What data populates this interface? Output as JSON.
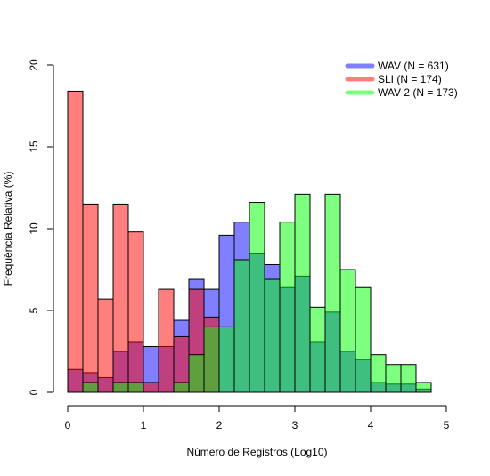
{
  "chart_data": {
    "type": "histogram",
    "title": "",
    "xlabel": "Número de Registros (Log10)",
    "ylabel": "Frequência Relativa (%)",
    "xlim": [
      0,
      5
    ],
    "ylim": [
      0,
      20
    ],
    "xticks": [
      0,
      1,
      2,
      3,
      4,
      5
    ],
    "yticks": [
      0,
      5,
      10,
      15,
      20
    ],
    "bin_width": 0.2,
    "legend_position": "top-right",
    "grid": false,
    "series": [
      {
        "name": "WAV (N = 631)",
        "color": "#0000ff",
        "alpha": 0.5,
        "bins": [
          {
            "x0": 0.0,
            "value": 1.4
          },
          {
            "x0": 0.2,
            "value": 1.2
          },
          {
            "x0": 0.4,
            "value": 0.9
          },
          {
            "x0": 0.6,
            "value": 2.5
          },
          {
            "x0": 0.8,
            "value": 3.1
          },
          {
            "x0": 1.0,
            "value": 2.8
          },
          {
            "x0": 1.2,
            "value": 2.8
          },
          {
            "x0": 1.4,
            "value": 4.4
          },
          {
            "x0": 1.6,
            "value": 6.9
          },
          {
            "x0": 1.8,
            "value": 6.3
          },
          {
            "x0": 2.0,
            "value": 9.6
          },
          {
            "x0": 2.2,
            "value": 10.4
          },
          {
            "x0": 2.4,
            "value": 8.5
          },
          {
            "x0": 2.6,
            "value": 7.8
          },
          {
            "x0": 2.8,
            "value": 6.4
          },
          {
            "x0": 3.0,
            "value": 7.1
          },
          {
            "x0": 3.2,
            "value": 3.1
          },
          {
            "x0": 3.4,
            "value": 4.9
          },
          {
            "x0": 3.6,
            "value": 2.5
          },
          {
            "x0": 3.8,
            "value": 2.0
          },
          {
            "x0": 4.0,
            "value": 0.6
          },
          {
            "x0": 4.2,
            "value": 0.5
          },
          {
            "x0": 4.4,
            "value": 0.5
          },
          {
            "x0": 4.6,
            "value": 0.2
          }
        ]
      },
      {
        "name": "SLI (N = 174)",
        "color": "#ff0000",
        "alpha": 0.5,
        "bins": [
          {
            "x0": 0.0,
            "value": 18.4
          },
          {
            "x0": 0.2,
            "value": 11.5
          },
          {
            "x0": 0.4,
            "value": 5.7
          },
          {
            "x0": 0.6,
            "value": 11.5
          },
          {
            "x0": 0.8,
            "value": 9.8
          },
          {
            "x0": 1.0,
            "value": 0.6
          },
          {
            "x0": 1.2,
            "value": 6.3
          },
          {
            "x0": 1.4,
            "value": 3.4
          },
          {
            "x0": 1.6,
            "value": 6.3
          },
          {
            "x0": 1.8,
            "value": 4.6
          }
        ]
      },
      {
        "name": "WAV 2 (N = 173)",
        "color": "#00ff00",
        "alpha": 0.5,
        "bins": [
          {
            "x0": 0.2,
            "value": 0.6
          },
          {
            "x0": 0.6,
            "value": 0.6
          },
          {
            "x0": 0.8,
            "value": 0.6
          },
          {
            "x0": 1.4,
            "value": 0.6
          },
          {
            "x0": 1.6,
            "value": 2.3
          },
          {
            "x0": 1.8,
            "value": 4.0
          },
          {
            "x0": 2.0,
            "value": 4.0
          },
          {
            "x0": 2.2,
            "value": 8.1
          },
          {
            "x0": 2.4,
            "value": 11.6
          },
          {
            "x0": 2.6,
            "value": 6.9
          },
          {
            "x0": 2.8,
            "value": 10.4
          },
          {
            "x0": 3.0,
            "value": 12.1
          },
          {
            "x0": 3.2,
            "value": 5.2
          },
          {
            "x0": 3.4,
            "value": 12.1
          },
          {
            "x0": 3.6,
            "value": 7.5
          },
          {
            "x0": 3.8,
            "value": 6.4
          },
          {
            "x0": 4.0,
            "value": 2.3
          },
          {
            "x0": 4.2,
            "value": 1.7
          },
          {
            "x0": 4.4,
            "value": 1.7
          },
          {
            "x0": 4.6,
            "value": 0.6
          }
        ]
      }
    ]
  }
}
